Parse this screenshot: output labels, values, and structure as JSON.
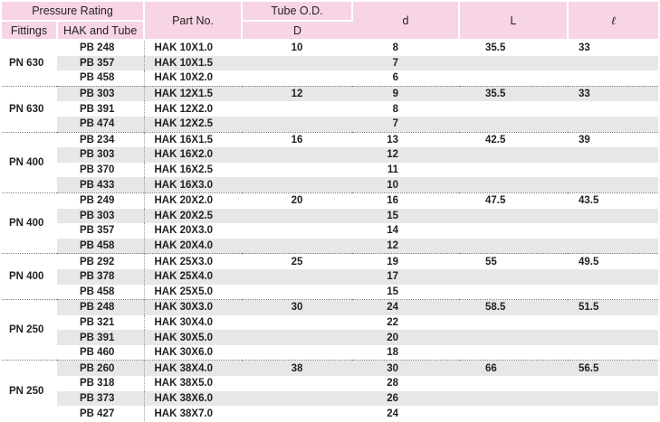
{
  "header": {
    "pressure_rating": "Pressure Rating",
    "fittings": "Fittings",
    "hak_and_tube": "HAK and Tube",
    "part_no": "Part No.",
    "tube_od": "Tube O.D.",
    "tube_od_symbol": "D",
    "d": "d",
    "L": "L",
    "l": "ℓ"
  },
  "colors": {
    "header_bg": "#f7d5e4",
    "row_shade": "#e6e7e8",
    "text": "#231f20"
  },
  "groups": [
    {
      "fitting": "PN 630",
      "tube_od": "10",
      "L": "35.5",
      "l": "33",
      "rows": [
        {
          "hak": "PB 248",
          "part": "HAK 10X1.0",
          "d": "8"
        },
        {
          "hak": "PB 357",
          "part": "HAK 10X1.5",
          "d": "7"
        },
        {
          "hak": "PB 458",
          "part": "HAK 10X2.0",
          "d": "6"
        }
      ]
    },
    {
      "fitting": "PN 630",
      "tube_od": "12",
      "L": "35.5",
      "l": "33",
      "rows": [
        {
          "hak": "PB 303",
          "part": "HAK 12X1.5",
          "d": "9"
        },
        {
          "hak": "PB 391",
          "part": "HAK 12X2.0",
          "d": "8"
        },
        {
          "hak": "PB 474",
          "part": "HAK 12X2.5",
          "d": "7"
        }
      ]
    },
    {
      "fitting": "PN 400",
      "tube_od": "16",
      "L": "42.5",
      "l": "39",
      "rows": [
        {
          "hak": "PB 234",
          "part": "HAK 16X1.5",
          "d": "13"
        },
        {
          "hak": "PB 303",
          "part": "HAK 16X2.0",
          "d": "12"
        },
        {
          "hak": "PB 370",
          "part": "HAK 16X2.5",
          "d": "11"
        },
        {
          "hak": "PB 433",
          "part": "HAK 16X3.0",
          "d": "10"
        }
      ]
    },
    {
      "fitting": "PN 400",
      "tube_od": "20",
      "L": "47.5",
      "l": "43.5",
      "rows": [
        {
          "hak": "PB 249",
          "part": "HAK 20X2.0",
          "d": "16"
        },
        {
          "hak": "PB 303",
          "part": "HAK 20X2.5",
          "d": "15"
        },
        {
          "hak": "PB 357",
          "part": "HAK 20X3.0",
          "d": "14"
        },
        {
          "hak": "PB 458",
          "part": "HAK 20X4.0",
          "d": "12"
        }
      ]
    },
    {
      "fitting": "PN 400",
      "tube_od": "25",
      "L": "55",
      "l": "49.5",
      "rows": [
        {
          "hak": "PB 292",
          "part": "HAK 25X3.0",
          "d": "19"
        },
        {
          "hak": "PB 378",
          "part": "HAK 25X4.0",
          "d": "17"
        },
        {
          "hak": "PB 458",
          "part": "HAK 25X5.0",
          "d": "15"
        }
      ]
    },
    {
      "fitting": "PN 250",
      "tube_od": "30",
      "L": "58.5",
      "l": "51.5",
      "rows": [
        {
          "hak": "PB 248",
          "part": "HAK 30X3.0",
          "d": "24"
        },
        {
          "hak": "PB 321",
          "part": "HAK 30X4.0",
          "d": "22"
        },
        {
          "hak": "PB 391",
          "part": "HAK 30X5.0",
          "d": "20"
        },
        {
          "hak": "PB 460",
          "part": "HAK 30X6.0",
          "d": "18"
        }
      ]
    },
    {
      "fitting": "PN 250",
      "tube_od": "38",
      "L": "66",
      "l": "56.5",
      "rows": [
        {
          "hak": "PB 260",
          "part": "HAK 38X4.0",
          "d": "30"
        },
        {
          "hak": "PB 318",
          "part": "HAK 38X5.0",
          "d": "28"
        },
        {
          "hak": "PB 373",
          "part": "HAK 38X6.0",
          "d": "26"
        },
        {
          "hak": "PB 427",
          "part": "HAK 38X7.0",
          "d": "24"
        }
      ]
    }
  ]
}
